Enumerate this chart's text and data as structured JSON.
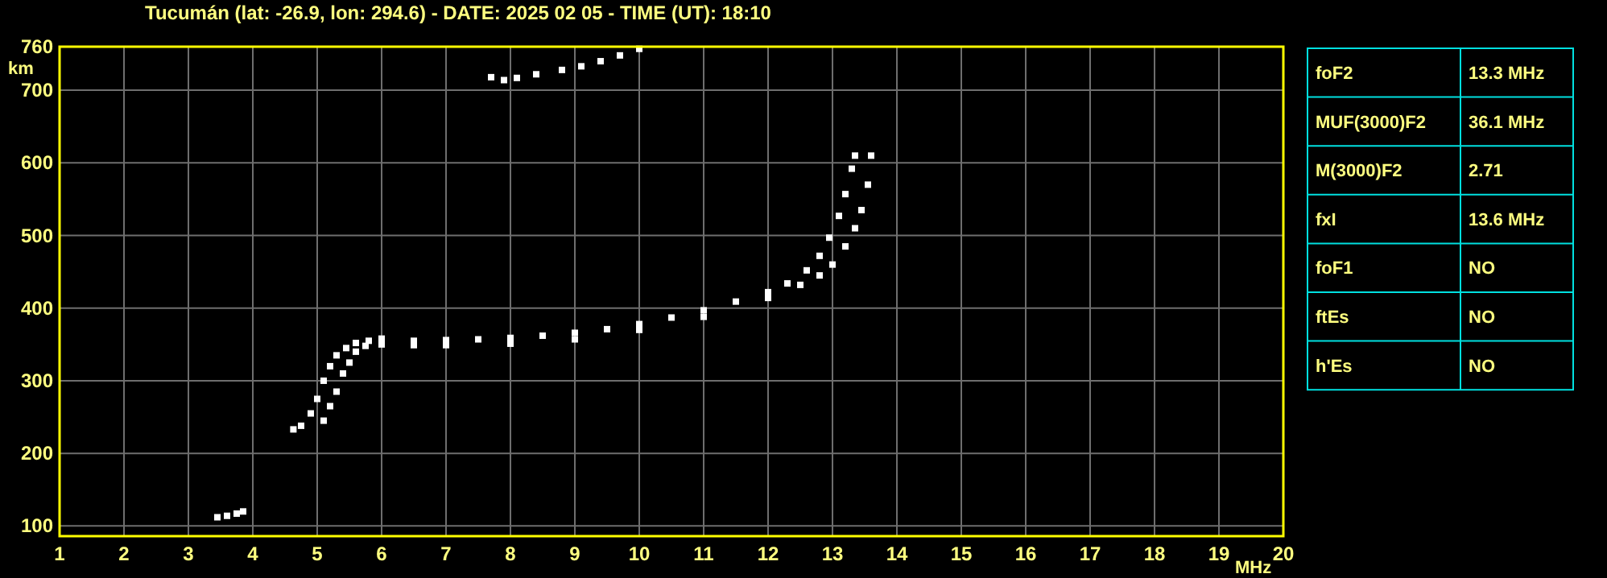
{
  "chart_data": [
    {
      "type": "scatter",
      "title": "Tucumán (lat: -26.9, lon: 294.6) - DATE: 2025 02 05 - TIME (UT): 18:10",
      "xlabel": "MHz",
      "ylabel": "km",
      "xlim": [
        1,
        20
      ],
      "ylim": [
        86,
        760
      ],
      "xticks": [
        1,
        2,
        3,
        4,
        5,
        6,
        7,
        8,
        9,
        10,
        11,
        12,
        13,
        14,
        15,
        16,
        17,
        18,
        19,
        20
      ],
      "yticks": [
        100,
        200,
        300,
        400,
        500,
        600,
        700,
        760
      ],
      "grid": true,
      "marker": "square",
      "series": [
        {
          "color": "#ffffff",
          "x": [
            4.63,
            4.75,
            4.9,
            5.0,
            5.1,
            5.2,
            5.3,
            5.45,
            5.6,
            5.8,
            6.0,
            6.5,
            7.0,
            7.5,
            8.0,
            8.5,
            9.0,
            9.5,
            10.0,
            10.5,
            11.0,
            11.5,
            12.0,
            12.3,
            12.6,
            12.8,
            12.95,
            13.1,
            13.2,
            13.3,
            13.35
          ],
          "values": [
            233,
            238,
            255,
            275,
            300,
            320,
            335,
            345,
            352,
            355,
            358,
            355,
            356,
            357,
            359,
            362,
            366,
            371,
            378,
            387,
            397,
            409,
            422,
            434,
            452,
            472,
            497,
            527,
            557,
            592,
            610
          ]
        },
        {
          "color": "#ffffff",
          "x": [
            5.1,
            5.2,
            5.3,
            5.4,
            5.5,
            5.6,
            5.75,
            6.0,
            6.5,
            7.0,
            8.0,
            9.0,
            10.0,
            11.0,
            12.0,
            12.5,
            12.8,
            13.0,
            13.2,
            13.35,
            13.45,
            13.55,
            13.6
          ],
          "values": [
            245,
            265,
            285,
            310,
            325,
            340,
            348,
            350,
            349,
            349,
            351,
            357,
            370,
            388,
            414,
            432,
            445,
            460,
            485,
            510,
            535,
            570,
            610
          ]
        },
        {
          "color": "#ffffff",
          "x": [
            3.45,
            3.6,
            3.75,
            3.85
          ],
          "values": [
            112,
            114,
            117,
            120
          ]
        },
        {
          "color": "#ffffff",
          "x": [
            7.7,
            7.9,
            8.1,
            8.4,
            8.8,
            9.1,
            9.4,
            9.7,
            10.0
          ],
          "values": [
            718,
            714,
            717,
            722,
            728,
            733,
            740,
            748,
            757
          ]
        }
      ]
    },
    {
      "type": "other",
      "annotations": [
        "foF2",
        "13.3 MHz",
        "MUF(3000)F2",
        "36.1 MHz",
        "M(3000)F2",
        "2.71",
        "fxI",
        "13.6 MHz",
        "foF1",
        "NO",
        "ftEs",
        "NO",
        "h'Es",
        "NO"
      ]
    }
  ]
}
